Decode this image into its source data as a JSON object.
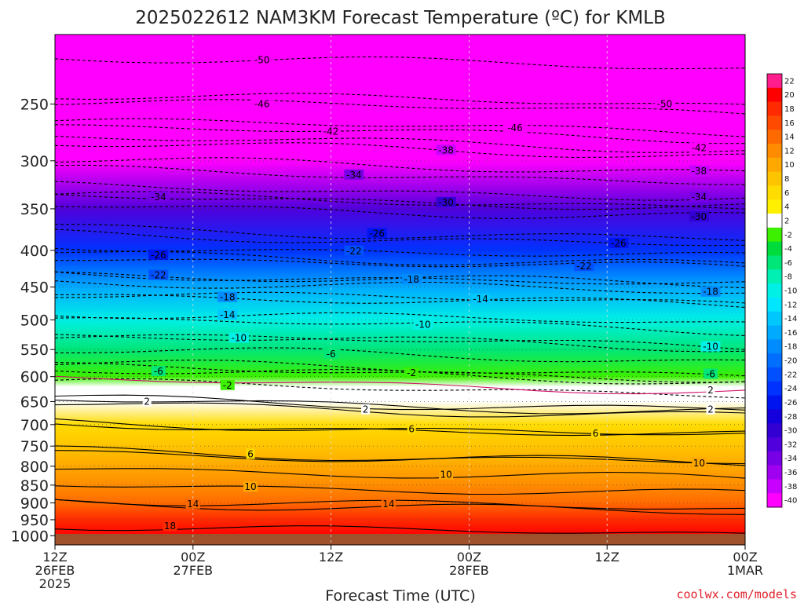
{
  "chart_data": {
    "type": "heatmap",
    "title": "2025022612 NAM3KM Forecast Temperature (ºC) for KMLB",
    "xlabel": "Forecast Time (UTC)",
    "ylabel": "",
    "y_scale": "log-pressure",
    "ylim": [
      1030,
      200
    ],
    "y_ticks": [
      250,
      300,
      350,
      400,
      450,
      500,
      550,
      600,
      650,
      700,
      750,
      800,
      850,
      900,
      950,
      1000
    ],
    "x_ticks": [
      {
        "line1": "12Z",
        "line2": "26FEB",
        "line3": "2025"
      },
      {
        "line1": "00Z",
        "line2": "27FEB",
        "line3": ""
      },
      {
        "line1": "12Z",
        "line2": "",
        "line3": ""
      },
      {
        "line1": "00Z",
        "line2": "28FEB",
        "line3": ""
      },
      {
        "line1": "12Z",
        "line2": "",
        "line3": ""
      },
      {
        "line1": "00Z",
        "line2": "1MAR",
        "line3": ""
      }
    ],
    "x_hours": [
      0,
      12,
      24,
      36,
      48,
      60
    ],
    "colorbar": {
      "labels": [
        "22",
        "20",
        "18",
        "16",
        "14",
        "12",
        "10",
        "8",
        "6",
        "4",
        "2",
        "-2",
        "-4",
        "-6",
        "-8",
        "-10",
        "-12",
        "-14",
        "-16",
        "-18",
        "-20",
        "-22",
        "-24",
        "-26",
        "-28",
        "-30",
        "-32",
        "-34",
        "-36",
        "-38",
        "-40"
      ],
      "colors": [
        "#ff1e8c",
        "#ff0000",
        "#ff2a00",
        "#ff4a00",
        "#ff6a00",
        "#ff8c00",
        "#ffa800",
        "#ffc400",
        "#ffdc00",
        "#fff000",
        "#ffffff",
        "#3cf000",
        "#00dc3c",
        "#00e678",
        "#00f0b4",
        "#00f0e6",
        "#00e6ff",
        "#00c8ff",
        "#00aaff",
        "#008cff",
        "#006eff",
        "#0050ff",
        "#0032ff",
        "#0014f0",
        "#1400dc",
        "#3200d2",
        "#5000dc",
        "#7800e6",
        "#a000f0",
        "#c800ff",
        "#ff00ff"
      ]
    },
    "temperature_profile": [
      {
        "p": 1020,
        "t": 22
      },
      {
        "p": 1000,
        "t": 20
      },
      {
        "p": 950,
        "t": 17
      },
      {
        "p": 900,
        "t": 14
      },
      {
        "p": 850,
        "t": 11
      },
      {
        "p": 800,
        "t": 9
      },
      {
        "p": 750,
        "t": 7
      },
      {
        "p": 700,
        "t": 5
      },
      {
        "p": 650,
        "t": 2
      },
      {
        "p": 620,
        "t": 0
      },
      {
        "p": 600,
        "t": -3
      },
      {
        "p": 550,
        "t": -7
      },
      {
        "p": 500,
        "t": -11
      },
      {
        "p": 450,
        "t": -17
      },
      {
        "p": 400,
        "t": -24
      },
      {
        "p": 350,
        "t": -32
      },
      {
        "p": 300,
        "t": -41
      },
      {
        "p": 250,
        "t": -50
      },
      {
        "p": 200,
        "t": -55
      }
    ],
    "contour_labels": [
      {
        "text": "-50",
        "hour": 18,
        "p": 217
      },
      {
        "text": "-50",
        "hour": 53,
        "p": 250
      },
      {
        "text": "-46",
        "hour": 18,
        "p": 250
      },
      {
        "text": "-46",
        "hour": 40,
        "p": 270
      },
      {
        "text": "-42",
        "hour": 24,
        "p": 273
      },
      {
        "text": "-42",
        "hour": 56,
        "p": 288
      },
      {
        "text": "-38",
        "hour": 34,
        "p": 290
      },
      {
        "text": "-38",
        "hour": 56,
        "p": 310
      },
      {
        "text": "-34",
        "hour": 9,
        "p": 337
      },
      {
        "text": "-34",
        "hour": 26,
        "p": 314
      },
      {
        "text": "-34",
        "hour": 56,
        "p": 337
      },
      {
        "text": "-30",
        "hour": 34,
        "p": 343
      },
      {
        "text": "-30",
        "hour": 56,
        "p": 359
      },
      {
        "text": "-26",
        "hour": 9,
        "p": 406
      },
      {
        "text": "-26",
        "hour": 28,
        "p": 379
      },
      {
        "text": "-26",
        "hour": 49,
        "p": 391
      },
      {
        "text": "-22",
        "hour": 9,
        "p": 433
      },
      {
        "text": "-22",
        "hour": 26,
        "p": 401
      },
      {
        "text": "-22",
        "hour": 46,
        "p": 421
      },
      {
        "text": "-18",
        "hour": 15,
        "p": 465
      },
      {
        "text": "-18",
        "hour": 31,
        "p": 439
      },
      {
        "text": "-18",
        "hour": 57,
        "p": 457
      },
      {
        "text": "-14",
        "hour": 15,
        "p": 492
      },
      {
        "text": "-14",
        "hour": 37,
        "p": 468
      },
      {
        "text": "-10",
        "hour": 16,
        "p": 530
      },
      {
        "text": "-10",
        "hour": 32,
        "p": 508
      },
      {
        "text": "-10",
        "hour": 57,
        "p": 545
      },
      {
        "text": "-6",
        "hour": 9,
        "p": 590
      },
      {
        "text": "-6",
        "hour": 24,
        "p": 558
      },
      {
        "text": "-6",
        "hour": 57,
        "p": 595
      },
      {
        "text": "-2",
        "hour": 15,
        "p": 617
      },
      {
        "text": "-2",
        "hour": 31,
        "p": 593
      },
      {
        "text": "2",
        "hour": 57,
        "p": 627
      },
      {
        "text": "2",
        "hour": 8,
        "p": 650
      },
      {
        "text": "2",
        "hour": 27,
        "p": 667
      },
      {
        "text": "2",
        "hour": 57,
        "p": 667
      },
      {
        "text": "6",
        "hour": 17,
        "p": 770
      },
      {
        "text": "6",
        "hour": 31,
        "p": 710
      },
      {
        "text": "6",
        "hour": 47,
        "p": 720
      },
      {
        "text": "10",
        "hour": 17,
        "p": 855
      },
      {
        "text": "10",
        "hour": 34,
        "p": 822
      },
      {
        "text": "10",
        "hour": 56,
        "p": 792
      },
      {
        "text": "14",
        "hour": 12,
        "p": 903
      },
      {
        "text": "14",
        "hour": 29,
        "p": 903
      },
      {
        "text": "18",
        "hour": 10,
        "p": 970
      }
    ]
  },
  "credit": "coolwx.com/models"
}
